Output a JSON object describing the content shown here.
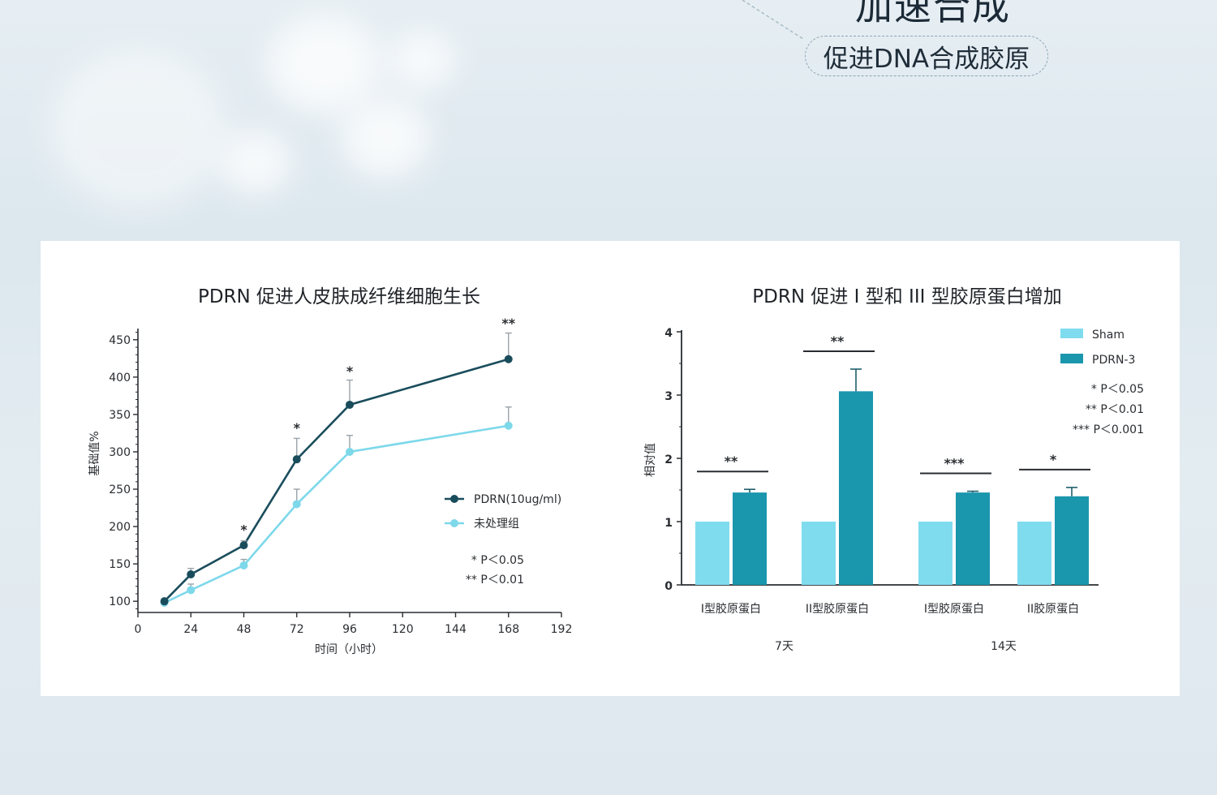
{
  "header": {
    "headline": "加速合成",
    "pill_text": "促进DNA合成胶原"
  },
  "colors": {
    "dark_teal": "#1a4d5c",
    "light_cyan": "#7dd8ea",
    "bar_dark": "#1a96ad",
    "bar_light": "#7fdcef"
  },
  "chart_data": [
    {
      "type": "line",
      "title": "PDRN 促进人皮肤成纤维细胞生长",
      "xlabel": "时间（小时）",
      "ylabel": "基础值%",
      "xlim": [
        0,
        192
      ],
      "ylim": [
        85,
        465
      ],
      "xticks": [
        0,
        24,
        48,
        72,
        96,
        120,
        144,
        168,
        192
      ],
      "yticks": [
        100,
        150,
        200,
        250,
        300,
        350,
        400,
        450
      ],
      "series": [
        {
          "name": "PDRN(10ug/ml)",
          "x": [
            12,
            24,
            48,
            72,
            96,
            168
          ],
          "y": [
            100,
            136,
            175,
            290,
            363,
            424
          ],
          "err": [
            3,
            8,
            6,
            28,
            33,
            35
          ]
        },
        {
          "name": "未处理组",
          "x": [
            12,
            24,
            48,
            72,
            96,
            168
          ],
          "y": [
            98,
            115,
            148,
            230,
            300,
            335
          ],
          "err": [
            3,
            8,
            8,
            20,
            22,
            25
          ]
        }
      ],
      "significance": [
        {
          "x": 48,
          "y": 190,
          "text": "*"
        },
        {
          "x": 72,
          "y": 326,
          "text": "*"
        },
        {
          "x": 96,
          "y": 402,
          "text": "*"
        },
        {
          "x": 168,
          "y": 466,
          "text": "**"
        }
      ],
      "legend_notes": [
        "* P＜0.05",
        "** P＜0.01"
      ],
      "legend_position": "right"
    },
    {
      "type": "bar",
      "title": "PDRN 促进 I 型和 III 型胶原蛋白增加",
      "ylabel": "相对值",
      "ylim": [
        0,
        4
      ],
      "yticks": [
        0,
        1,
        2,
        3,
        4
      ],
      "categories": [
        "I型胶原蛋白",
        "II型胶原蛋白",
        "I型胶原蛋白",
        "II胶原蛋白"
      ],
      "groups": [
        "7天",
        "14天"
      ],
      "series": [
        {
          "name": "Sham",
          "values": [
            1.0,
            1.0,
            1.0,
            1.0
          ],
          "err": [
            0,
            0,
            0,
            0
          ]
        },
        {
          "name": "PDRN-3",
          "values": [
            1.46,
            3.06,
            1.46,
            1.4
          ],
          "err": [
            0.05,
            0.35,
            0.02,
            0.14
          ]
        }
      ],
      "significance": [
        "**",
        "**",
        "***",
        "*"
      ],
      "legend_notes": [
        "* P＜0.05",
        "** P＜0.01",
        "*** P＜0.001"
      ],
      "legend_position": "top-right"
    }
  ]
}
